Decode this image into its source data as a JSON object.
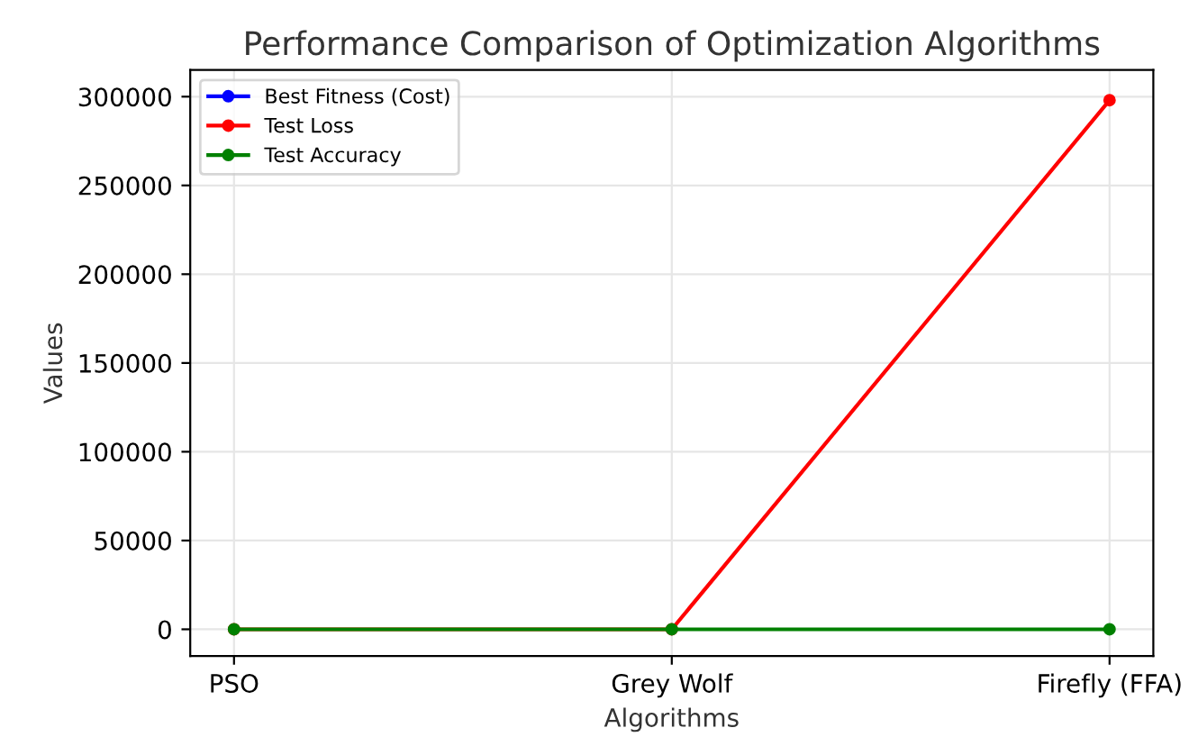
{
  "chart_data": {
    "type": "line",
    "title": "Performance Comparison of Optimization Algorithms",
    "xlabel": "Algorithms",
    "ylabel": "Values",
    "categories": [
      "PSO",
      "Grey Wolf",
      "Firefly (FFA)"
    ],
    "series": [
      {
        "name": "Best Fitness (Cost)",
        "color": "#0000ff",
        "values": [
          null,
          null,
          null
        ]
      },
      {
        "name": "Test Loss",
        "color": "#ff0000",
        "values": [
          0,
          0,
          298000
        ]
      },
      {
        "name": "Test Accuracy",
        "color": "#008000",
        "values": [
          0,
          0,
          0
        ]
      }
    ],
    "ylim": [
      -15000,
      315000
    ],
    "yticks": [
      0,
      50000,
      100000,
      150000,
      200000,
      250000,
      300000
    ],
    "grid": true,
    "legend": "top left",
    "marker": "circle",
    "line_style": "solid"
  }
}
